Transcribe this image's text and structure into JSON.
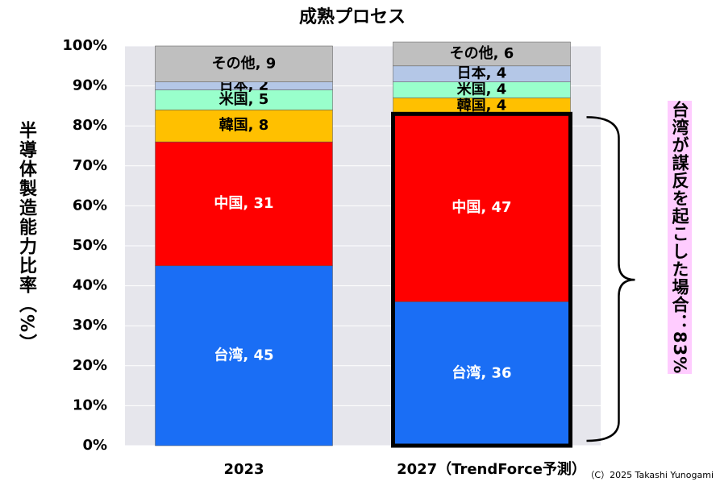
{
  "chart_data": {
    "type": "stacked_bar",
    "title": "成熟プロセス",
    "y_label": "半導体製造能力比率（%）",
    "categories": [
      "2023",
      "2027（TrendForce予測）"
    ],
    "series": [
      {
        "name": "台湾",
        "color": "#1a6ef5",
        "label_color": "#ffffff",
        "values": [
          45,
          36
        ],
        "value_labels": [
          "台湾, 45",
          "台湾, 36"
        ]
      },
      {
        "name": "中国",
        "color": "#ff0000",
        "label_color": "#ffffff",
        "values": [
          31,
          47
        ],
        "value_labels": [
          "中国, 31",
          "中国, 47"
        ]
      },
      {
        "name": "韓国",
        "color": "#ffc000",
        "label_color": "#000000",
        "values": [
          8,
          4
        ],
        "value_labels": [
          "韓国, 8",
          "韓国, 4"
        ]
      },
      {
        "name": "米国",
        "color": "#99ffcc",
        "label_color": "#000000",
        "values": [
          5,
          4
        ],
        "value_labels": [
          "米国, 5",
          "米国, 4"
        ]
      },
      {
        "name": "日本",
        "color": "#b4c7e7",
        "label_color": "#000000",
        "values": [
          2,
          4
        ],
        "value_labels": [
          "日本, 2",
          "日本, 4"
        ]
      },
      {
        "name": "その他",
        "color": "#bfbfbf",
        "label_color": "#000000",
        "values": [
          9,
          6
        ],
        "value_labels": [
          "その他, 9",
          "その他, 6"
        ]
      }
    ],
    "ylim": [
      0,
      100
    ],
    "yticks": [
      {
        "value": 0,
        "label": "0%"
      },
      {
        "value": 10,
        "label": "10%"
      },
      {
        "value": 20,
        "label": "20%"
      },
      {
        "value": 30,
        "label": "30%"
      },
      {
        "value": 40,
        "label": "40%"
      },
      {
        "value": 50,
        "label": "50%"
      },
      {
        "value": 60,
        "label": "60%"
      },
      {
        "value": 70,
        "label": "70%"
      },
      {
        "value": 80,
        "label": "80%"
      },
      {
        "value": 90,
        "label": "90%"
      },
      {
        "value": 100,
        "label": "100%"
      }
    ],
    "grid": true,
    "annotation": "台湾が謀反を起こした場合：83%",
    "credit": "（C）2025 Takashi Yunogami"
  }
}
